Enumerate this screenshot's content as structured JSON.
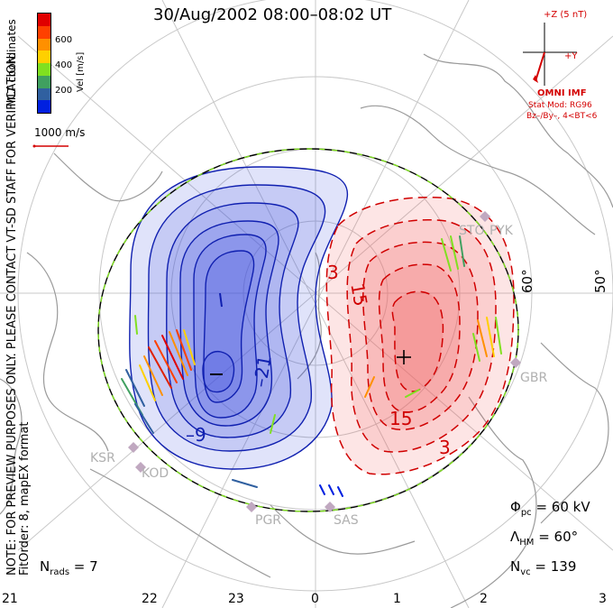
{
  "title": "30/Aug/2002  08:00–08:02  UT",
  "coords_label": "MLT coordinates",
  "colorbar": {
    "label": "Vel [m/s]",
    "ticks": [
      "600",
      "400",
      "200"
    ],
    "colors": [
      "#e00000",
      "#ff4000",
      "#ff9000",
      "#ffd000",
      "#80e020",
      "#40a060",
      "#3060a0",
      "#0020e0"
    ]
  },
  "velocity_scale": "1000 m/s",
  "imf": {
    "z_label": "+Z (5 nT)",
    "y_label": "+Y",
    "source": "OMNI IMF",
    "model": "Stat Mod: RG96",
    "condition": "Bz–/By–, 4<BT<6"
  },
  "preview_note": "NOTE: FOR PREVIEW PURPOSES ONLY. PLEASE CONTACT VT-SD STAFF FOR VERIFICATION.",
  "fit_note": "FitOrder: 8, mapEX format",
  "stats": {
    "phi_pc": "60 kV",
    "lambda_hm": "60°",
    "n_vc": "139",
    "n_rads": "7"
  },
  "radars": [
    "KSR",
    "KOD",
    "PGR",
    "SAS",
    "GBR",
    "STO",
    "PYK"
  ],
  "mlt_ticks": [
    "21",
    "22",
    "23",
    "0",
    "1",
    "2",
    "3"
  ],
  "latitude_labels": [
    "60°",
    "50°"
  ],
  "contour_labels": {
    "dusk": [
      "–21",
      "–9"
    ],
    "dawn": [
      "3",
      "15",
      "15",
      "3"
    ]
  },
  "extrema": {
    "min_symbol": "–",
    "max_symbol": "+"
  },
  "colors": {
    "negative_line": "#1020b0",
    "negative_fill": "#4050e0",
    "positive_line": "#d00000",
    "positive_fill": "#f06060",
    "hmb": "#80e020",
    "land": "#9a9a9a",
    "accent_red": "#d40000"
  }
}
